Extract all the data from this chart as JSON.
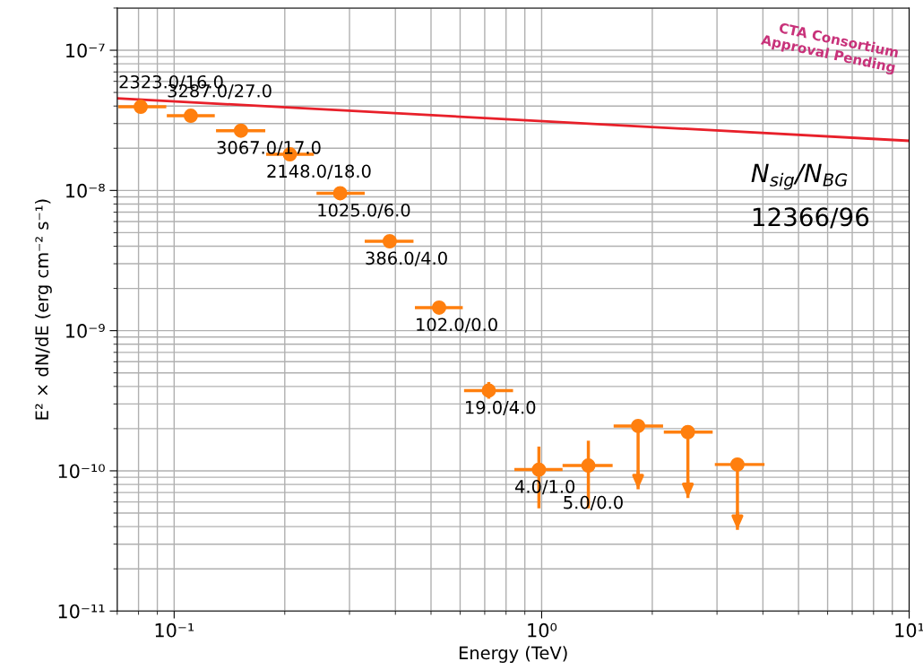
{
  "chart_data": {
    "type": "scatter",
    "xlabel": "Energy (TeV)",
    "ylabel": "E² × dN/dE (erg cm⁻² s⁻¹)",
    "log": "xy",
    "grid": true,
    "xlim": [
      0.07,
      10
    ],
    "ylim": [
      1e-11,
      2e-07
    ],
    "xticks": [
      {
        "value": 0.1,
        "label": "10⁻¹"
      },
      {
        "value": 1,
        "label": "10⁰"
      },
      {
        "value": 10,
        "label": "10¹"
      }
    ],
    "yticks": [
      {
        "value": 1e-11,
        "label": "10⁻¹¹"
      },
      {
        "value": 1e-10,
        "label": "10⁻¹⁰"
      },
      {
        "value": 1e-09,
        "label": "10⁻⁹"
      },
      {
        "value": 1e-08,
        "label": "10⁻⁸"
      },
      {
        "value": 1e-07,
        "label": "10⁻⁷"
      }
    ],
    "series": [
      {
        "marker": "circle",
        "color": "#ff7f0e",
        "x": [
          0.0811,
          0.111,
          0.152,
          0.2065,
          0.283,
          0.386,
          0.526,
          0.718,
          0.983,
          1.34,
          1.83,
          2.5,
          3.41
        ],
        "values": [
          3.95e-08,
          3.41e-08,
          2.67e-08,
          1.81e-08,
          9.55e-09,
          4.34e-09,
          1.46e-09,
          3.74e-10,
          1.02e-10,
          1.09e-10,
          2.09e-10,
          1.89e-10,
          1.11e-10
        ],
        "xerrors": [
          [
            0.0705,
            0.0952
          ],
          [
            0.0955,
            0.129
          ],
          [
            0.13,
            0.177
          ],
          [
            0.178,
            0.24
          ],
          [
            0.244,
            0.33
          ],
          [
            0.33,
            0.448
          ],
          [
            0.452,
            0.61
          ],
          [
            0.615,
            0.836
          ],
          [
            0.843,
            1.14
          ],
          [
            1.14,
            1.56
          ],
          [
            1.57,
            2.14
          ],
          [
            2.15,
            2.92
          ],
          [
            2.96,
            4.04
          ]
        ],
        "errors": [
          null,
          null,
          null,
          null,
          null,
          null,
          null,
          [
            3.27e-10,
            4.3e-10
          ],
          [
            5.4e-11,
            1.49e-10
          ],
          [
            5.4e-11,
            1.64e-10
          ],
          [
            7.4e-11,
            2.09e-10
          ],
          [
            6.4e-11,
            1.89e-10
          ],
          [
            3.8e-11,
            1.11e-10
          ]
        ],
        "value_labels": [
          "2323.0/16.0",
          "3287.0/27.0",
          "3067.0/17.0",
          "2148.0/18.0",
          "1025.0/6.0",
          "386.0/4.0",
          "102.0/0.0",
          "19.0/4.0",
          "4.0/1.0",
          "5.0/0.0",
          null,
          null,
          null
        ]
      },
      {
        "type": "line",
        "color": "#e8202a",
        "x": [
          0.07,
          10
        ],
        "values": [
          4.54e-08,
          2.26e-08
        ]
      }
    ],
    "annotations": [
      "N$_{sig}$/N$_{BG}$",
      "12366/96",
      "CTA Consortium\nApproval Pending"
    ]
  }
}
